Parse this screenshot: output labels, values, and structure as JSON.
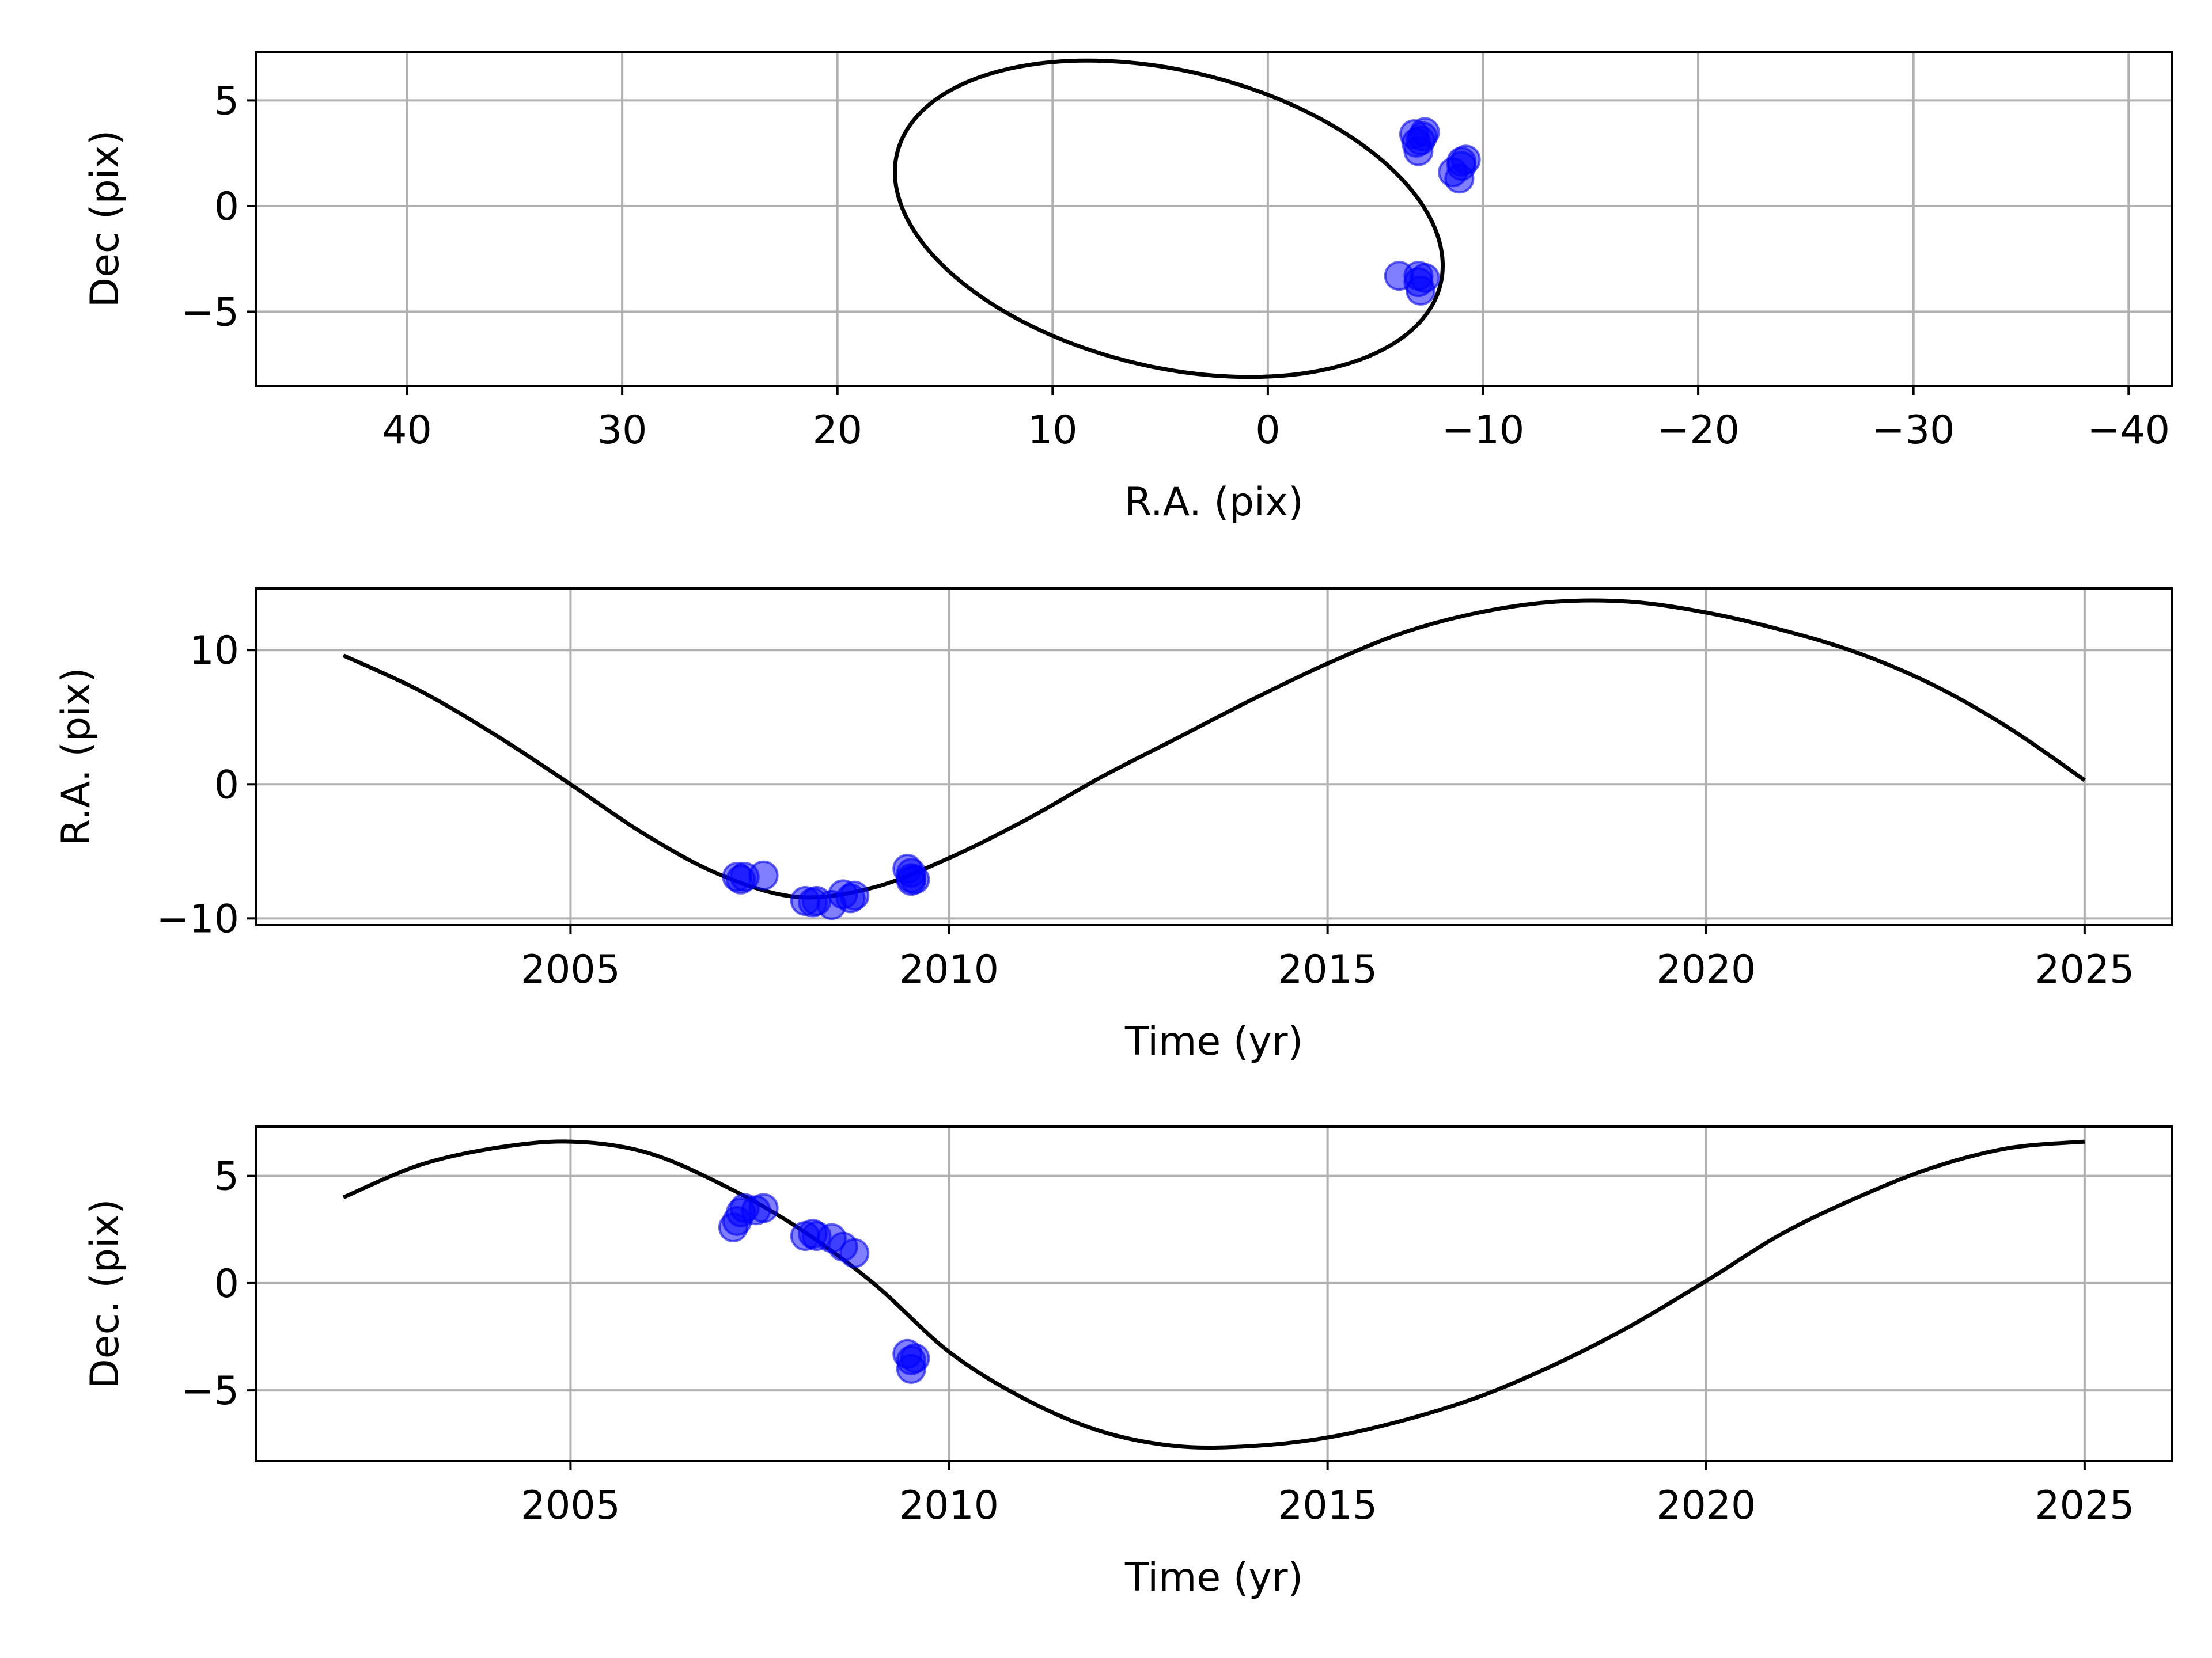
{
  "colors": {
    "model_line": "#000000",
    "observations": "#0000ff",
    "grid": "#b0b0b0",
    "frame": "#000000",
    "background": "#ffffff"
  },
  "chart_data": [
    {
      "id": "orbit",
      "type": "scatter",
      "xlabel": "R.A. (pix)",
      "ylabel": "Dec (pix)",
      "xlim": [
        47,
        -42
      ],
      "ylim": [
        -8.5,
        7.3
      ],
      "x_inverted": true,
      "xticks": [
        40,
        30,
        20,
        10,
        0,
        -10,
        -20,
        -30,
        -40
      ],
      "xtick_labels": [
        "40",
        "30",
        "20",
        "10",
        "0",
        "−10",
        "−20",
        "−30",
        "−40"
      ],
      "yticks": [
        -5,
        0,
        5
      ],
      "ytick_labels": [
        "−5",
        "0",
        "5"
      ],
      "grid": true,
      "model": {
        "type": "ellipse",
        "center": [
          4.6,
          -0.6
        ],
        "semi_axes": [
          13.0,
          7.0
        ],
        "rotation_deg": 14,
        "color": "#000000"
      },
      "points": [
        [
          -6.8,
          3.4
        ],
        [
          -7.1,
          3.1
        ],
        [
          -7.3,
          3.5
        ],
        [
          -7.0,
          2.6
        ],
        [
          -6.9,
          3.0
        ],
        [
          -7.2,
          3.3
        ],
        [
          -8.6,
          1.6
        ],
        [
          -8.9,
          1.3
        ],
        [
          -9.0,
          2.1
        ],
        [
          -9.2,
          2.2
        ],
        [
          -9.0,
          1.9
        ],
        [
          -6.1,
          -3.3
        ],
        [
          -7.0,
          -3.6
        ],
        [
          -7.1,
          -4.0
        ],
        [
          -7.3,
          -3.4
        ],
        [
          -7.0,
          -3.3
        ]
      ]
    },
    {
      "id": "ra-time",
      "type": "line",
      "xlabel": "Time (yr)",
      "ylabel": "R.A. (pix)",
      "xlim": [
        2000.85,
        2026.15
      ],
      "ylim": [
        -10.5,
        14.6
      ],
      "xticks": [
        2005,
        2010,
        2015,
        2020,
        2025
      ],
      "xtick_labels": [
        "2005",
        "2010",
        "2015",
        "2020",
        "2025"
      ],
      "yticks": [
        -10,
        0,
        10
      ],
      "ytick_labels": [
        "−10",
        "0",
        "10"
      ],
      "grid": true,
      "model": {
        "type": "line",
        "x": [
          2002,
          2003,
          2004,
          2005,
          2006,
          2007,
          2008,
          2009,
          2010,
          2011,
          2012,
          2013,
          2014,
          2015,
          2016,
          2017,
          2018,
          2019,
          2020,
          2021,
          2022,
          2023,
          2024,
          2025
        ],
        "y": [
          9.6,
          7.0,
          3.7,
          0.0,
          -3.8,
          -6.8,
          -8.4,
          -7.7,
          -5.5,
          -2.7,
          0.5,
          3.4,
          6.3,
          9.0,
          11.3,
          12.8,
          13.6,
          13.6,
          12.8,
          11.5,
          9.8,
          7.4,
          4.2,
          0.3
        ],
        "color": "#000000"
      },
      "points": [
        [
          2007.2,
          -6.9
        ],
        [
          2007.25,
          -7.1
        ],
        [
          2007.3,
          -6.9
        ],
        [
          2007.55,
          -6.8
        ],
        [
          2008.1,
          -8.7
        ],
        [
          2008.2,
          -8.8
        ],
        [
          2008.25,
          -8.7
        ],
        [
          2008.45,
          -9.0
        ],
        [
          2008.6,
          -8.2
        ],
        [
          2008.7,
          -8.5
        ],
        [
          2008.75,
          -8.3
        ],
        [
          2009.45,
          -6.3
        ],
        [
          2009.5,
          -7.0
        ],
        [
          2009.5,
          -7.2
        ],
        [
          2009.55,
          -7.1
        ],
        [
          2009.5,
          -6.6
        ]
      ]
    },
    {
      "id": "dec-time",
      "type": "line",
      "xlabel": "Time (yr)",
      "ylabel": "Dec. (pix)",
      "xlim": [
        2000.85,
        2026.15
      ],
      "ylim": [
        -8.3,
        7.3
      ],
      "xticks": [
        2005,
        2010,
        2015,
        2020,
        2025
      ],
      "xtick_labels": [
        "2005",
        "2010",
        "2015",
        "2020",
        "2025"
      ],
      "yticks": [
        -5,
        0,
        5
      ],
      "ytick_labels": [
        "−5",
        "0",
        "5"
      ],
      "grid": true,
      "model": {
        "type": "line",
        "x": [
          2002,
          2003,
          2004,
          2005,
          2006,
          2007,
          2008,
          2009,
          2010,
          2011,
          2012,
          2013,
          2014,
          2015,
          2016,
          2017,
          2018,
          2019,
          2020,
          2021,
          2022,
          2023,
          2024,
          2025
        ],
        "y": [
          4.0,
          5.5,
          6.3,
          6.6,
          6.1,
          4.6,
          2.6,
          0.0,
          -3.2,
          -5.4,
          -6.9,
          -7.6,
          -7.6,
          -7.2,
          -6.4,
          -5.3,
          -3.8,
          -2.0,
          0.1,
          2.3,
          4.0,
          5.4,
          6.3,
          6.6
        ],
        "color": "#000000"
      },
      "points": [
        [
          2007.15,
          2.6
        ],
        [
          2007.2,
          2.9
        ],
        [
          2007.25,
          3.3
        ],
        [
          2007.3,
          3.5
        ],
        [
          2007.45,
          3.4
        ],
        [
          2007.55,
          3.5
        ],
        [
          2008.1,
          2.2
        ],
        [
          2008.2,
          2.3
        ],
        [
          2008.25,
          2.2
        ],
        [
          2008.45,
          2.1
        ],
        [
          2008.6,
          1.7
        ],
        [
          2008.75,
          1.4
        ],
        [
          2009.45,
          -3.3
        ],
        [
          2009.5,
          -3.6
        ],
        [
          2009.5,
          -4.0
        ],
        [
          2009.55,
          -3.5
        ]
      ]
    }
  ]
}
